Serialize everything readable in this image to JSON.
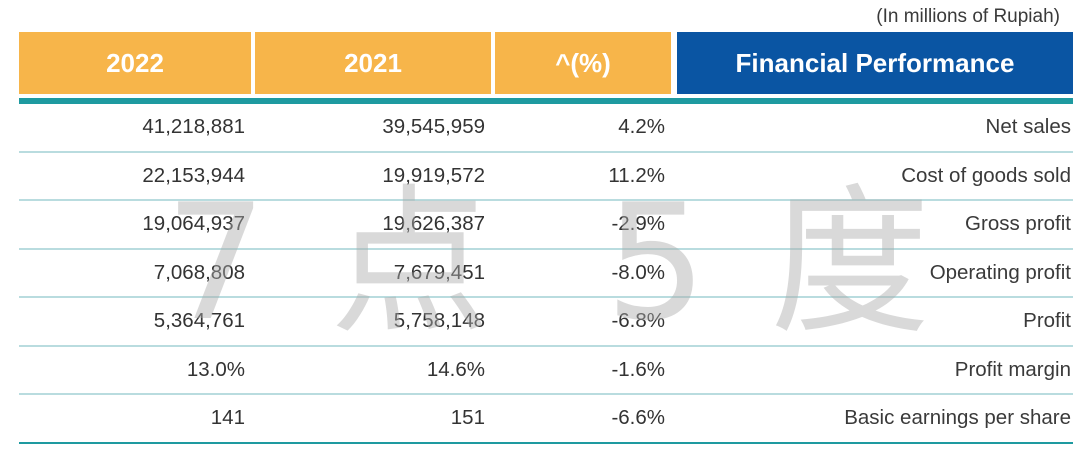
{
  "unit_note": "(In millions of Rupiah)",
  "header": {
    "col1": "2022",
    "col2": "2021",
    "col3": "^(%)",
    "col4": "Financial Performance"
  },
  "rows": [
    {
      "v2022": "41,218,881",
      "v2021": "39,545,959",
      "change": "4.2%",
      "label": "Net sales"
    },
    {
      "v2022": "22,153,944",
      "v2021": "19,919,572",
      "change": "11.2%",
      "label": "Cost of goods sold"
    },
    {
      "v2022": "19,064,937",
      "v2021": "19,626,387",
      "change": "-2.9%",
      "label": "Gross profit"
    },
    {
      "v2022": "7,068,808",
      "v2021": "7,679,451",
      "change": "-8.0%",
      "label": "Operating profit"
    },
    {
      "v2022": "5,364,761",
      "v2021": "5,758,148",
      "change": "-6.8%",
      "label": "Profit"
    },
    {
      "v2022": "13.0%",
      "v2021": "14.6%",
      "change": "-1.6%",
      "label": "Profit margin"
    },
    {
      "v2022": "141",
      "v2021": "151",
      "change": "-6.6%",
      "label": "Basic earnings per share"
    }
  ],
  "watermark": [
    "7",
    "点",
    "5",
    "度"
  ],
  "colors": {
    "header_year": "#f7b54a",
    "header_title": "#0a55a3",
    "accent_bar": "#1e9aa0"
  }
}
